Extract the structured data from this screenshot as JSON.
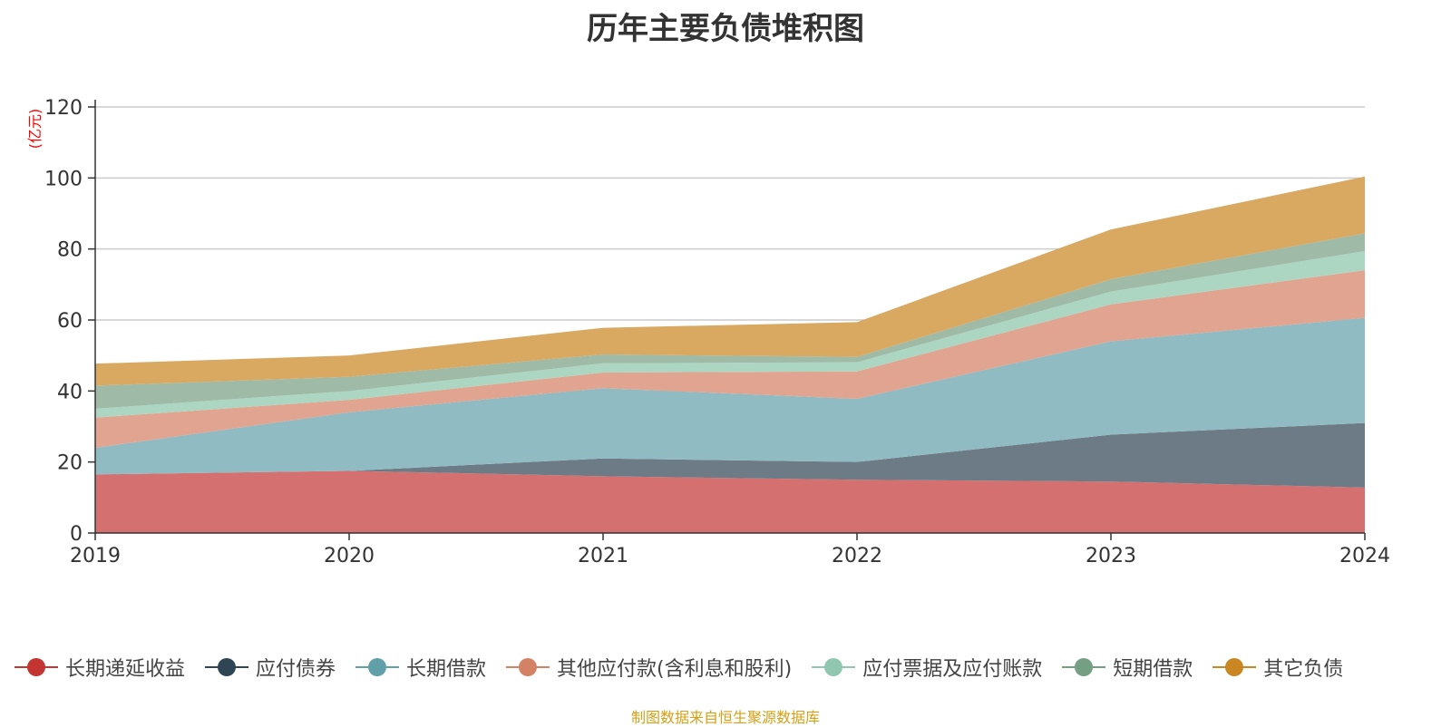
{
  "title": "历年主要负债堆积图",
  "source": "制图数据来自恒生聚源数据库",
  "colors": {
    "source_text": "#d4a017",
    "unit_text": "#ff0000",
    "axis": "#333333",
    "grid": "#cccccc"
  },
  "chart_data": {
    "type": "area",
    "stacked": true,
    "title": "历年主要负债堆积图",
    "ylabel": "(亿元)",
    "xlabel": "",
    "ylim": [
      0,
      120
    ],
    "yticks": [
      0,
      20,
      40,
      60,
      80,
      100,
      120
    ],
    "x": [
      "2019",
      "2020",
      "2021",
      "2022",
      "2023",
      "2024"
    ],
    "grid": true,
    "legend_position": "bottom",
    "series": [
      {
        "name": "长期递延收益",
        "color": "#c23531",
        "fill": "#d4706f",
        "values": [
          16.5,
          17.5,
          16.0,
          15.0,
          14.5,
          12.8
        ]
      },
      {
        "name": "应付债券",
        "color": "#2f4554",
        "fill": "#6d7b87",
        "values": [
          0.0,
          0.0,
          5.0,
          5.0,
          13.2,
          18.2
        ]
      },
      {
        "name": "长期借款",
        "color": "#61a0a8",
        "fill": "#91bbc2",
        "values": [
          7.5,
          16.5,
          19.8,
          17.8,
          26.3,
          29.6
        ]
      },
      {
        "name": "其他应付款(含利息和股利)",
        "color": "#d48265",
        "fill": "#e0a490",
        "values": [
          8.5,
          3.5,
          4.4,
          7.7,
          10.4,
          13.4
        ]
      },
      {
        "name": "应付票据及应付账款",
        "color": "#91c7ae",
        "fill": "#acd6c1",
        "values": [
          2.5,
          2.5,
          2.6,
          2.6,
          3.6,
          5.4
        ]
      },
      {
        "name": "短期借款",
        "color": "#749f83",
        "fill": "#9fbaa6",
        "values": [
          6.5,
          4.0,
          2.5,
          1.5,
          3.5,
          5.0
        ]
      },
      {
        "name": "其它负债",
        "color": "#ca8622",
        "fill": "#d9a962",
        "values": [
          6.2,
          6.0,
          7.5,
          9.8,
          14.0,
          16.0
        ]
      }
    ]
  }
}
